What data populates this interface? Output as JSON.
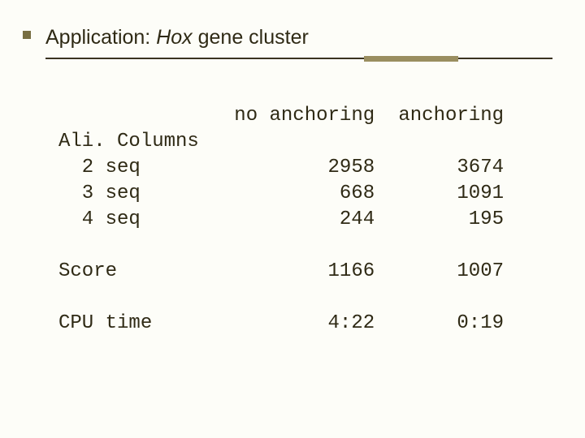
{
  "title_prefix": "Application: ",
  "title_italic": "Hox",
  "title_suffix": " gene cluster",
  "header_col1": "no anchoring",
  "header_col2": "anchoring",
  "section_ali": "Ali. Columns",
  "rows_ali": [
    {
      "label": "  2 seq",
      "c1": "2958",
      "c2": "3674"
    },
    {
      "label": "  3 seq",
      "c1": "668",
      "c2": "1091"
    },
    {
      "label": "  4 seq",
      "c1": "244",
      "c2": "195"
    }
  ],
  "rows_rest": [
    {
      "label": "Score",
      "c1": "1166",
      "c2": "1007"
    },
    {
      "label": "CPU time",
      "c1": "4:22",
      "c2": "0:19"
    }
  ],
  "colors": {
    "background": "#fdfdf8",
    "text": "#2f2a15",
    "rule": "#3a3320",
    "accent": "#9a8e60",
    "bullet": "#776e42"
  }
}
